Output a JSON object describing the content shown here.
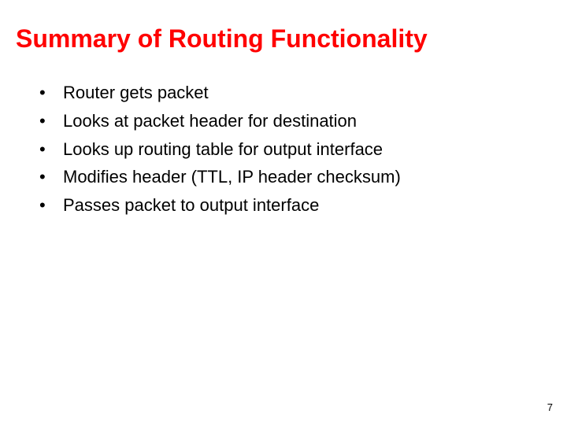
{
  "slide": {
    "title": "Summary of Routing Functionality",
    "title_color": "#ff0000",
    "title_fontsize": 32,
    "title_weight": "bold",
    "background_color": "#ffffff",
    "body_color": "#000000",
    "body_fontsize": 22,
    "bullet_marker": "•",
    "bullets": [
      "Router gets packet",
      "Looks at packet header for destination",
      "Looks up routing table for output interface",
      "Modifies header (TTL, IP header checksum)",
      "Passes packet to output interface"
    ],
    "page_number": "7",
    "page_number_fontsize": 13
  }
}
